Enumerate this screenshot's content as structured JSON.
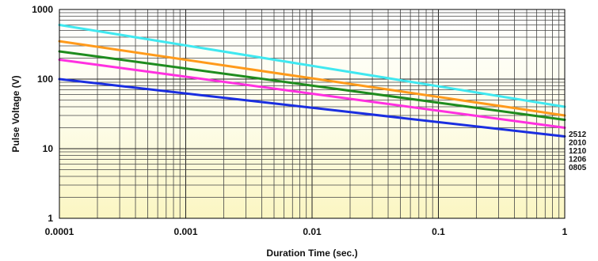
{
  "chart_data": {
    "type": "line",
    "title": "",
    "xlabel": "Duration Time (sec.)",
    "ylabel": "Pulse Voltage (V)",
    "xscale": "log",
    "yscale": "log",
    "xlim": [
      0.0001,
      1
    ],
    "ylim": [
      1,
      1000
    ],
    "grid": true,
    "background": "pale yellow gradient",
    "x_ticks": [
      {
        "value": 0.0001,
        "label": "0.0001"
      },
      {
        "value": 0.001,
        "label": "0.001"
      },
      {
        "value": 0.01,
        "label": "0.01"
      },
      {
        "value": 0.1,
        "label": "0.1"
      },
      {
        "value": 1,
        "label": "1"
      }
    ],
    "y_ticks": [
      {
        "value": 1,
        "label": "1"
      },
      {
        "value": 10,
        "label": "10"
      },
      {
        "value": 100,
        "label": "100"
      },
      {
        "value": 1000,
        "label": "1000"
      }
    ],
    "series": [
      {
        "name": "2512",
        "color": "#40e8f0",
        "points": [
          [
            0.0001,
            600
          ],
          [
            1,
            40
          ]
        ]
      },
      {
        "name": "2010",
        "color": "#ff9a1a",
        "points": [
          [
            0.0001,
            350
          ],
          [
            1,
            30
          ]
        ]
      },
      {
        "name": "1210",
        "color": "#1e8c1e",
        "points": [
          [
            0.0001,
            250
          ],
          [
            1,
            26
          ]
        ]
      },
      {
        "name": "1206",
        "color": "#ff30e0",
        "points": [
          [
            0.0001,
            190
          ],
          [
            1,
            20
          ]
        ]
      },
      {
        "name": "0805",
        "color": "#1a2ee0",
        "points": [
          [
            0.0001,
            100
          ],
          [
            1,
            15
          ]
        ]
      }
    ]
  }
}
